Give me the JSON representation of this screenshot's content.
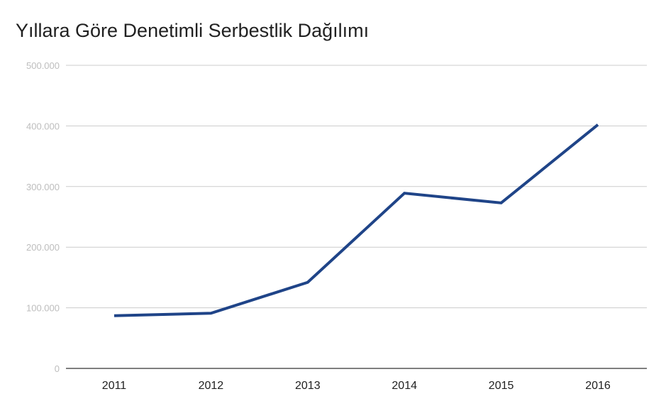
{
  "chart_data": {
    "type": "line",
    "title": "Yıllara Göre Denetimli Serbestlik Dağılımı",
    "xlabel": "",
    "ylabel": "",
    "categories": [
      "2011",
      "2012",
      "2013",
      "2014",
      "2015",
      "2016"
    ],
    "series": [
      {
        "values": [
          87000,
          91000,
          142000,
          289000,
          273000,
          402000
        ],
        "color": "#1f4488"
      }
    ],
    "ylim": [
      0,
      500000
    ],
    "yticks": [
      0,
      100000,
      200000,
      300000,
      400000,
      500000
    ],
    "ytick_labels": [
      "0",
      "100.000",
      "200.000",
      "300.000",
      "400.000",
      "500.000"
    ],
    "grid": true,
    "legend": "none"
  }
}
